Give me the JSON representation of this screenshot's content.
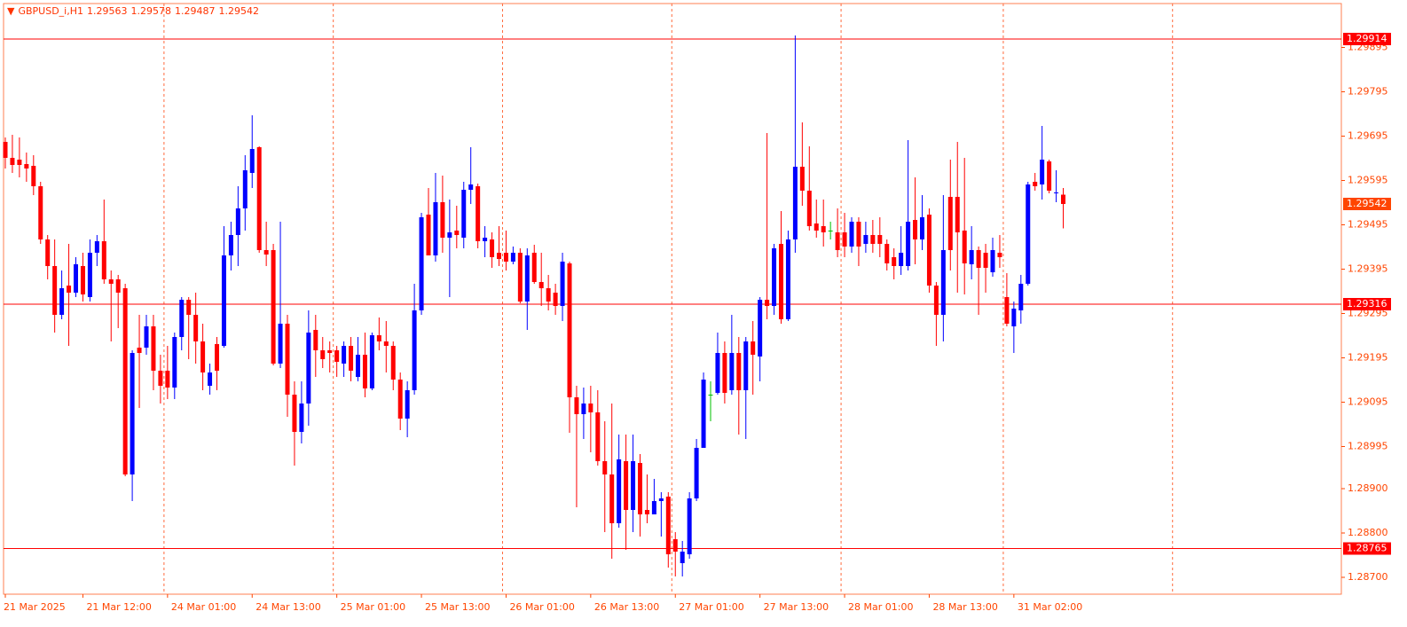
{
  "chart_data": {
    "type": "candlestick",
    "title": "GBPUSD_i,H1",
    "ohlc": [
      1.29563,
      1.29578,
      1.29487,
      1.29542
    ],
    "up_color": "#0000ff",
    "down_color": "#ff0000",
    "doji_color": "#00c000",
    "categories": [
      "21 Mar 2025",
      null,
      null,
      null,
      null,
      null,
      null,
      null,
      null,
      null,
      null,
      "21 Mar 12:00",
      null,
      null,
      null,
      null,
      null,
      null,
      null,
      null,
      null,
      null,
      null,
      "24 Mar 01:00",
      null,
      null,
      null,
      null,
      null,
      null,
      null,
      null,
      null,
      null,
      null,
      "24 Mar 13:00",
      null,
      null,
      null,
      null,
      null,
      null,
      null,
      null,
      null,
      null,
      null,
      "25 Mar 01:00",
      null,
      null,
      null,
      null,
      null,
      null,
      null,
      null,
      null,
      null,
      null,
      "25 Mar 13:00",
      null,
      null,
      null,
      null,
      null,
      null,
      null,
      null,
      null,
      null,
      null,
      "26 Mar 01:00",
      null,
      null,
      null,
      null,
      null,
      null,
      null,
      null,
      null,
      null,
      null,
      "26 Mar 13:00",
      null,
      null,
      null,
      null,
      null,
      null,
      null,
      null,
      null,
      null,
      null,
      "27 Mar 01:00",
      null,
      null,
      null,
      null,
      null,
      null,
      null,
      null,
      null,
      null,
      null,
      "27 Mar 13:00",
      null,
      null,
      null,
      null,
      null,
      null,
      null,
      null,
      null,
      null,
      null,
      "28 Mar 01:00",
      null,
      null,
      null,
      null,
      null,
      null,
      null,
      null,
      null,
      null,
      null,
      "28 Mar 13:00",
      null,
      null,
      null,
      null,
      null,
      null,
      null,
      null,
      null,
      null,
      null,
      "31 Mar 02:00",
      null,
      null,
      null,
      null,
      null,
      null,
      null
    ],
    "open": [
      1.29682,
      1.29646,
      1.29642,
      1.29632,
      1.29628,
      1.29582,
      1.29462,
      1.29402,
      1.29292,
      1.29358,
      1.29342,
      1.29402,
      1.29332,
      1.29432,
      1.29458,
      1.29372,
      1.29372,
      1.29352,
      1.28932,
      1.29218,
      1.29218,
      1.29266,
      1.29166,
      1.29166,
      1.29128,
      1.29242,
      1.29326,
      1.29292,
      1.29232,
      1.29132,
      1.29226,
      1.29222,
      1.29426,
      1.29472,
      1.29532,
      1.29612,
      1.2967,
      1.29438,
      1.29438,
      1.29182,
      1.29272,
      1.29112,
      1.29028,
      1.29092,
      1.29258,
      1.29212,
      1.29212,
      1.29212,
      1.29182,
      1.29222,
      1.29152,
      1.29202,
      1.29126,
      1.29246,
      1.29232,
      1.29222,
      1.29146,
      1.29058,
      1.29122,
      1.29302,
      1.29518,
      1.29426,
      1.29546,
      1.29466,
      1.29482,
      1.29466,
      1.29574,
      1.29582,
      1.29458,
      1.29462,
      1.29432,
      1.29432,
      1.29412,
      1.29432,
      1.29322,
      1.29432,
      1.29366,
      1.29352,
      1.29342,
      1.29312,
      1.29408,
      1.29106,
      1.29068,
      1.29092,
      1.29072,
      1.28962,
      1.28932,
      1.28822,
      1.28962,
      1.28852,
      1.28958,
      1.28852,
      1.28842,
      1.28872,
      1.28882,
      1.28786,
      1.28732,
      1.28752,
      1.28878,
      1.28992,
      1.29112,
      1.29116,
      1.29206,
      1.29122,
      1.29206,
      1.29122,
      1.29232,
      1.29198,
      1.29326,
      1.29312,
      1.29452,
      1.29282,
      1.29462,
      1.29626,
      1.29572,
      1.29498,
      1.29492,
      1.29482,
      1.29478,
      1.29478,
      1.29446,
      1.29502,
      1.29452,
      1.29472,
      1.29472,
      1.29452,
      1.29422,
      1.29402,
      1.29402,
      1.29506,
      1.29462,
      1.29518,
      1.29358,
      1.29292,
      1.29558,
      1.29558,
      1.29482,
      1.29406,
      1.29438,
      1.29432,
      1.29388,
      1.29432,
      1.29332,
      1.29266,
      1.29302,
      1.29362,
      1.29592,
      1.29586,
      1.29638,
      1.29566,
      1.29563
    ],
    "high": [
      1.29692,
      1.29698,
      1.29692,
      1.29658,
      1.29652,
      1.29592,
      1.29472,
      1.29462,
      1.29392,
      1.29452,
      1.29422,
      1.29432,
      1.29462,
      1.29472,
      1.29552,
      1.29392,
      1.29382,
      1.29362,
      1.29212,
      1.29292,
      1.29292,
      1.29292,
      1.29202,
      1.29222,
      1.29252,
      1.29332,
      1.29332,
      1.29342,
      1.29272,
      1.29182,
      1.29242,
      1.29492,
      1.29502,
      1.29582,
      1.29652,
      1.29742,
      1.29672,
      1.29502,
      1.29452,
      1.29502,
      1.29292,
      1.29142,
      1.29142,
      1.29302,
      1.29292,
      1.29242,
      1.29232,
      1.29222,
      1.29232,
      1.29242,
      1.29242,
      1.29252,
      1.29252,
      1.29286,
      1.29278,
      1.29232,
      1.29162,
      1.29142,
      1.29362,
      1.29522,
      1.29578,
      1.29612,
      1.29606,
      1.29552,
      1.29538,
      1.29592,
      1.2967,
      1.29588,
      1.29492,
      1.29478,
      1.29492,
      1.29482,
      1.29446,
      1.29442,
      1.29442,
      1.2945,
      1.29432,
      1.29382,
      1.29362,
      1.29432,
      1.29412,
      1.29132,
      1.29128,
      1.29132,
      1.29122,
      1.29052,
      1.29092,
      1.29022,
      1.29022,
      1.29022,
      1.28978,
      1.28932,
      1.28922,
      1.28892,
      1.28892,
      1.28802,
      1.28782,
      1.28892,
      1.29012,
      1.29162,
      1.29142,
      1.29252,
      1.29232,
      1.29292,
      1.29242,
      1.29242,
      1.29278,
      1.29332,
      1.29702,
      1.29452,
      1.29526,
      1.29482,
      1.29922,
      1.29726,
      1.29672,
      1.29552,
      1.29552,
      1.29502,
      1.29532,
      1.29522,
      1.29512,
      1.29512,
      1.29502,
      1.29506,
      1.29512,
      1.29462,
      1.29442,
      1.29492,
      1.29686,
      1.29602,
      1.29562,
      1.29532,
      1.29366,
      1.29562,
      1.29642,
      1.29682,
      1.29646,
      1.29492,
      1.29446,
      1.29452,
      1.29466,
      1.29472,
      1.29386,
      1.29322,
      1.29382,
      1.29592,
      1.29612,
      1.29718,
      1.29642,
      1.29618,
      1.29578
    ],
    "low": [
      1.29622,
      1.29612,
      1.29602,
      1.29592,
      1.29562,
      1.29452,
      1.29372,
      1.29252,
      1.29282,
      1.29222,
      1.29332,
      1.29322,
      1.29322,
      1.29402,
      1.29362,
      1.29232,
      1.29262,
      1.28928,
      1.28872,
      1.29082,
      1.29202,
      1.29122,
      1.29092,
      1.29102,
      1.29102,
      1.29212,
      1.29192,
      1.29182,
      1.29122,
      1.29112,
      1.29122,
      1.29218,
      1.29392,
      1.29402,
      1.29482,
      1.29578,
      1.29432,
      1.29402,
      1.29178,
      1.29172,
      1.29062,
      1.28952,
      1.29002,
      1.29042,
      1.29152,
      1.29172,
      1.29162,
      1.29152,
      1.29152,
      1.29142,
      1.29142,
      1.29106,
      1.29122,
      1.29212,
      1.29162,
      1.29122,
      1.29032,
      1.29016,
      1.29112,
      1.29292,
      1.29426,
      1.29412,
      1.29432,
      1.29332,
      1.29442,
      1.29442,
      1.29542,
      1.29442,
      1.29422,
      1.29398,
      1.29402,
      1.29392,
      1.29406,
      1.29318,
      1.29258,
      1.29362,
      1.29312,
      1.29302,
      1.29292,
      1.29278,
      1.29026,
      1.28858,
      1.29012,
      1.28982,
      1.28952,
      1.28802,
      1.28742,
      1.28812,
      1.28762,
      1.28802,
      1.28792,
      1.28822,
      1.28842,
      1.28792,
      1.28722,
      1.28702,
      1.28702,
      1.28742,
      1.28872,
      1.28992,
      1.29052,
      1.29112,
      1.29092,
      1.29112,
      1.29022,
      1.29012,
      1.29112,
      1.29142,
      1.29282,
      1.29292,
      1.29272,
      1.29278,
      1.29432,
      1.29538,
      1.29482,
      1.29466,
      1.29446,
      1.29462,
      1.29422,
      1.29422,
      1.29432,
      1.29402,
      1.29432,
      1.29432,
      1.29422,
      1.29392,
      1.29372,
      1.29382,
      1.29392,
      1.29406,
      1.29438,
      1.29342,
      1.29222,
      1.29232,
      1.29392,
      1.29342,
      1.29338,
      1.29372,
      1.29292,
      1.29342,
      1.29378,
      1.29398,
      1.29266,
      1.29206,
      1.29272,
      1.29358,
      1.29572,
      1.29552,
      1.29566,
      1.29546,
      1.29487
    ],
    "close": [
      1.29646,
      1.2963,
      1.2963,
      1.29622,
      1.29582,
      1.29462,
      1.29402,
      1.29292,
      1.29352,
      1.29342,
      1.29406,
      1.29338,
      1.29432,
      1.29458,
      1.29372,
      1.29362,
      1.29342,
      1.28932,
      1.29206,
      1.29206,
      1.29266,
      1.29166,
      1.29132,
      1.29128,
      1.29242,
      1.29326,
      1.29292,
      1.29232,
      1.29162,
      1.29162,
      1.29166,
      1.29426,
      1.29472,
      1.29532,
      1.29618,
      1.29666,
      1.29438,
      1.29428,
      1.29182,
      1.29272,
      1.29112,
      1.29028,
      1.29092,
      1.29252,
      1.29212,
      1.29192,
      1.29206,
      1.29186,
      1.29222,
      1.29166,
      1.29202,
      1.29126,
      1.29246,
      1.29232,
      1.29222,
      1.29146,
      1.29058,
      1.29122,
      1.29302,
      1.29512,
      1.29426,
      1.29546,
      1.29466,
      1.29478,
      1.29472,
      1.29574,
      1.29586,
      1.29458,
      1.29466,
      1.29422,
      1.29418,
      1.29412,
      1.29432,
      1.29322,
      1.29426,
      1.29366,
      1.29352,
      1.29322,
      1.29312,
      1.29412,
      1.29106,
      1.29068,
      1.29092,
      1.29072,
      1.28962,
      1.28932,
      1.28822,
      1.28966,
      1.28852,
      1.28962,
      1.28842,
      1.28842,
      1.28872,
      1.28878,
      1.28752,
      1.28758,
      1.28758,
      1.28878,
      1.28992,
      1.29146,
      1.29112,
      1.29206,
      1.29116,
      1.29206,
      1.29122,
      1.29232,
      1.29202,
      1.29326,
      1.29312,
      1.29442,
      1.29282,
      1.29462,
      1.29626,
      1.29572,
      1.29492,
      1.29482,
      1.29478,
      1.29482,
      1.29438,
      1.29446,
      1.29502,
      1.29446,
      1.29472,
      1.29452,
      1.29452,
      1.29408,
      1.29402,
      1.29432,
      1.29502,
      1.29462,
      1.29512,
      1.29358,
      1.29292,
      1.29438,
      1.29438,
      1.29478,
      1.29408,
      1.29438,
      1.29398,
      1.29398,
      1.29438,
      1.29422,
      1.29272,
      1.29306,
      1.29362,
      1.29586,
      1.29582,
      1.29642,
      1.29572,
      1.29568,
      1.29542
    ],
    "ylim": [
      1.28662,
      1.29994
    ],
    "yticks": [
      1.29895,
      1.29795,
      1.29695,
      1.29595,
      1.29495,
      1.29395,
      1.29295,
      1.29195,
      1.29095,
      1.28995,
      {
        "value": 1.289,
        "label": "1.28900"
      },
      {
        "value": 1.288,
        "label": "1.28800"
      },
      {
        "value": 1.287,
        "label": "1.28700"
      }
    ],
    "levels": [
      1.29914,
      1.29316,
      1.28765
    ],
    "level_color": "#ff0000",
    "last_price": 1.29542,
    "last_price_color": "#ff4500",
    "axis_color": "#ff4500",
    "separator_color": "#ff6a3d"
  }
}
